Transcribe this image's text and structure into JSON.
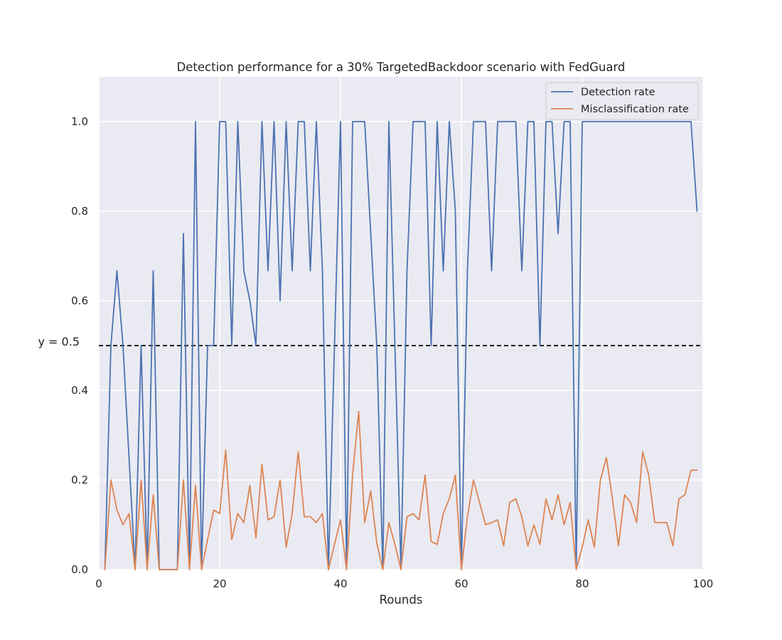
{
  "chart_data": {
    "type": "line",
    "title": "Detection performance for a 30% TargetedBackdoor scenario with FedGuard",
    "xlabel": "Rounds",
    "ylabel": "",
    "xlim": [
      0,
      100
    ],
    "ylim": [
      0,
      1.1
    ],
    "xticks": [
      0,
      20,
      40,
      60,
      80,
      100
    ],
    "yticks": [
      0.0,
      0.2,
      0.4,
      0.6,
      0.8,
      1.0
    ],
    "xtick_labels": [
      "0",
      "20",
      "40",
      "60",
      "80",
      "100"
    ],
    "ytick_labels": [
      "0.0",
      "0.2",
      "0.4",
      "0.6",
      "0.8",
      "1.0"
    ],
    "grid": true,
    "legend_position": "top-right",
    "hline": {
      "y": 0.5,
      "label": "y = 0.5",
      "style": "dashed",
      "color": "#000000"
    },
    "colors": {
      "background": "#eaeaf2",
      "grid": "#ffffff"
    },
    "series": [
      {
        "name": "Detection rate",
        "color": "#4c72b0",
        "x": [
          1,
          2,
          3,
          4,
          5,
          6,
          7,
          8,
          9,
          10,
          11,
          12,
          13,
          14,
          15,
          16,
          17,
          18,
          19,
          20,
          21,
          22,
          23,
          24,
          25,
          26,
          27,
          28,
          29,
          30,
          31,
          32,
          33,
          34,
          35,
          36,
          37,
          38,
          39,
          40,
          41,
          42,
          43,
          44,
          45,
          46,
          47,
          48,
          49,
          50,
          51,
          52,
          53,
          54,
          55,
          56,
          57,
          58,
          59,
          60,
          61,
          62,
          63,
          64,
          65,
          66,
          67,
          68,
          69,
          70,
          71,
          72,
          73,
          74,
          75,
          76,
          77,
          78,
          79,
          80,
          81,
          82,
          83,
          84,
          85,
          86,
          87,
          88,
          89,
          90,
          91,
          92,
          93,
          94,
          95,
          96,
          97,
          98,
          99
        ],
        "values": [
          0,
          0.5,
          0.667,
          0.5,
          0.25,
          0,
          0.5,
          0,
          0.667,
          0,
          0,
          0,
          0,
          0.75,
          0,
          1.0,
          0,
          0.5,
          0.5,
          1.0,
          1.0,
          0.5,
          1.0,
          0.667,
          0.6,
          0.5,
          1.0,
          0.667,
          1.0,
          0.6,
          1.0,
          0.667,
          1.0,
          1.0,
          0.667,
          1.0,
          0.667,
          0,
          0.5,
          1.0,
          0,
          1.0,
          1.0,
          1.0,
          0.75,
          0.5,
          0,
          1.0,
          0.5,
          0,
          0.667,
          1.0,
          1.0,
          1.0,
          0.5,
          1.0,
          0.667,
          1.0,
          0.8,
          0,
          0.667,
          1.0,
          1.0,
          1.0,
          0.667,
          1.0,
          1.0,
          1.0,
          1.0,
          0.667,
          1.0,
          1.0,
          0.5,
          1.0,
          1.0,
          0.75,
          1.0,
          1.0,
          0,
          1.0,
          1.0,
          1.0,
          1.0,
          1.0,
          1.0,
          1.0,
          1.0,
          1.0,
          1.0,
          1.0,
          1.0,
          1.0,
          1.0,
          1.0,
          1.0,
          1.0,
          1.0,
          1.0,
          0.8
        ]
      },
      {
        "name": "Misclassification rate",
        "color": "#dd8452",
        "x": [
          1,
          2,
          3,
          4,
          5,
          6,
          7,
          8,
          9,
          10,
          11,
          12,
          13,
          14,
          15,
          16,
          17,
          18,
          19,
          20,
          21,
          22,
          23,
          24,
          25,
          26,
          27,
          28,
          29,
          30,
          31,
          32,
          33,
          34,
          35,
          36,
          37,
          38,
          39,
          40,
          41,
          42,
          43,
          44,
          45,
          46,
          47,
          48,
          49,
          50,
          51,
          52,
          53,
          54,
          55,
          56,
          57,
          58,
          59,
          60,
          61,
          62,
          63,
          64,
          65,
          66,
          67,
          68,
          69,
          70,
          71,
          72,
          73,
          74,
          75,
          76,
          77,
          78,
          79,
          80,
          81,
          82,
          83,
          84,
          85,
          86,
          87,
          88,
          89,
          90,
          91,
          92,
          93,
          94,
          95,
          96,
          97,
          98,
          99
        ],
        "values": [
          0,
          0.2,
          0.133,
          0.1,
          0.125,
          0,
          0.2,
          0,
          0.167,
          0,
          0,
          0,
          0,
          0.2,
          0,
          0.188,
          0,
          0.067,
          0.133,
          0.125,
          0.267,
          0.067,
          0.125,
          0.105,
          0.188,
          0.071,
          0.235,
          0.111,
          0.118,
          0.2,
          0.05,
          0.125,
          0.263,
          0.118,
          0.118,
          0.105,
          0.125,
          0,
          0.056,
          0.111,
          0,
          0.211,
          0.353,
          0.105,
          0.176,
          0.059,
          0,
          0.105,
          0.056,
          0,
          0.118,
          0.125,
          0.111,
          0.211,
          0.063,
          0.056,
          0.125,
          0.158,
          0.211,
          0,
          0.118,
          0.2,
          0.15,
          0.1,
          0.105,
          0.111,
          0.053,
          0.15,
          0.158,
          0.118,
          0.053,
          0.1,
          0.056,
          0.158,
          0.111,
          0.167,
          0.1,
          0.15,
          0,
          0.05,
          0.111,
          0.05,
          0.2,
          0.25,
          0.158,
          0.053,
          0.167,
          0.15,
          0.105,
          0.263,
          0.211,
          0.105,
          0.105,
          0.105,
          0.053,
          0.158,
          0.167,
          0.222,
          0.222
        ]
      }
    ]
  }
}
